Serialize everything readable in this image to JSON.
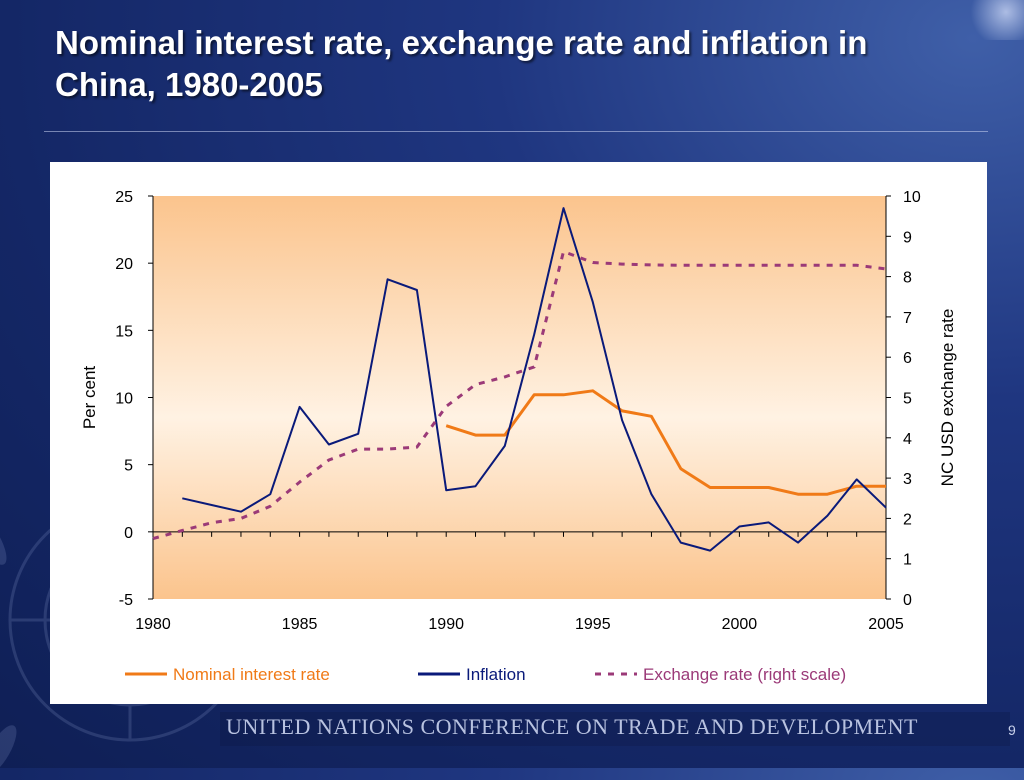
{
  "slide": {
    "title": "Nominal interest rate, exchange rate and inflation in China, 1980-2005",
    "footer": "UNITED NATIONS CONFERENCE ON TRADE AND DEVELOPMENT",
    "slide_number": "9"
  },
  "chart_data": {
    "type": "line",
    "title": "",
    "xlabel": "",
    "ylabel": "Per cent",
    "ylabel_right": "NC USD exchange rate",
    "x": [
      1980,
      1981,
      1982,
      1983,
      1984,
      1985,
      1986,
      1987,
      1988,
      1989,
      1990,
      1991,
      1992,
      1993,
      1994,
      1995,
      1996,
      1997,
      1998,
      1999,
      2000,
      2001,
      2002,
      2003,
      2004,
      2005
    ],
    "xticks": [
      "1980",
      "1985",
      "1990",
      "1995",
      "2000",
      "2005"
    ],
    "ylim": [
      -5,
      25
    ],
    "yticks": [
      "-5",
      "0",
      "5",
      "10",
      "15",
      "20",
      "25"
    ],
    "ylim_right": [
      0,
      10
    ],
    "yticks_right": [
      "0",
      "1",
      "2",
      "3",
      "4",
      "5",
      "6",
      "7",
      "8",
      "9",
      "10"
    ],
    "background": "shaded warm gradient",
    "grid": false,
    "legend_position": "bottom",
    "series": [
      {
        "name": "Nominal interest rate",
        "axis": "left",
        "color": "#f07a17",
        "style": "solid",
        "values": [
          null,
          null,
          null,
          null,
          null,
          null,
          null,
          null,
          null,
          null,
          7.9,
          7.2,
          7.2,
          10.2,
          10.2,
          10.5,
          9.0,
          8.6,
          4.7,
          3.3,
          3.3,
          3.3,
          2.8,
          2.8,
          3.4,
          3.4
        ]
      },
      {
        "name": "Inflation",
        "axis": "left",
        "color": "#0a1a7a",
        "style": "solid",
        "values": [
          null,
          2.5,
          2.0,
          1.5,
          2.8,
          9.3,
          6.5,
          7.3,
          18.8,
          18.0,
          3.1,
          3.4,
          6.4,
          14.7,
          24.1,
          17.1,
          8.3,
          2.8,
          -0.8,
          -1.4,
          0.4,
          0.7,
          -0.8,
          1.2,
          3.9,
          1.8
        ]
      },
      {
        "name": "Exchange rate (right scale)",
        "axis": "right",
        "color": "#9b3a78",
        "style": "dashed",
        "values": [
          1.5,
          1.7,
          1.89,
          2.0,
          2.3,
          2.9,
          3.45,
          3.72,
          3.72,
          3.77,
          4.78,
          5.32,
          5.51,
          5.76,
          8.62,
          8.35,
          8.31,
          8.29,
          8.28,
          8.28,
          8.28,
          8.28,
          8.28,
          8.28,
          8.28,
          8.19
        ]
      }
    ]
  }
}
